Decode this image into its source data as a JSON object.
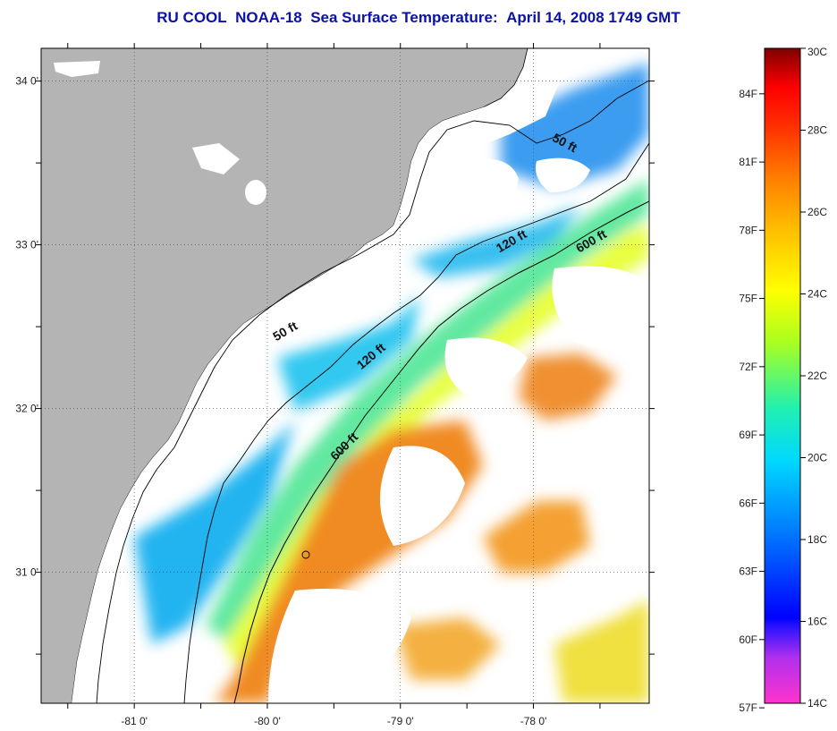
{
  "title": {
    "org": "RU COOL",
    "satellite": "NOAA-18",
    "product": "Sea Surface Temperature:",
    "datetime": "April 14, 2008 1749 GMT"
  },
  "map": {
    "lat_labels": [
      {
        "text": "34 0'",
        "lat": 34.0
      },
      {
        "text": "33 0'",
        "lat": 33.0
      },
      {
        "text": "32 0'",
        "lat": 32.0
      },
      {
        "text": "31 0'",
        "lat": 31.0
      }
    ],
    "lon_labels": [
      {
        "text": "-81 0'",
        "lon": -81.0
      },
      {
        "text": "-80 0'",
        "lon": -80.0
      },
      {
        "text": "-79 0'",
        "lon": -79.0
      },
      {
        "text": "-78 0'",
        "lon": -78.0
      }
    ],
    "lat_range": [
      30.2,
      34.2
    ],
    "lon_range": [
      -81.7,
      -77.13
    ],
    "grid": true,
    "contour_labels": [
      {
        "text": "50 ft",
        "lon": -77.78,
        "lat": 33.6,
        "angle": 28
      },
      {
        "text": "120 ft",
        "lon": -78.15,
        "lat": 33.0,
        "angle": -30
      },
      {
        "text": "600 ft",
        "lon": -77.55,
        "lat": 33.0,
        "angle": -30
      },
      {
        "text": "50 ft",
        "lon": -79.85,
        "lat": 32.45,
        "angle": -30
      },
      {
        "text": "120 ft",
        "lon": -79.2,
        "lat": 32.3,
        "angle": -40
      },
      {
        "text": "600 ft",
        "lon": -79.4,
        "lat": 31.75,
        "angle": -45
      }
    ],
    "land_color": "#b4b4b4",
    "cloud_color": "#ffffff"
  },
  "colorbar": {
    "celsius_labels": [
      "30C",
      "28C",
      "26C",
      "24C",
      "22C",
      "20C",
      "18C",
      "16C",
      "14C"
    ],
    "fahrenheit_labels": [
      "84F",
      "81F",
      "78F",
      "75F",
      "72F",
      "69F",
      "66F",
      "63F",
      "60F",
      "57F"
    ],
    "range_c": [
      14,
      30
    ],
    "colors": [
      "#ff33cc",
      "#a030ff",
      "#0000ff",
      "#0070ff",
      "#00d8ff",
      "#20f0b0",
      "#a8ff20",
      "#ffff00",
      "#ffc000",
      "#ff8000",
      "#ff4000",
      "#ff0000",
      "#c00000",
      "#800000"
    ]
  }
}
